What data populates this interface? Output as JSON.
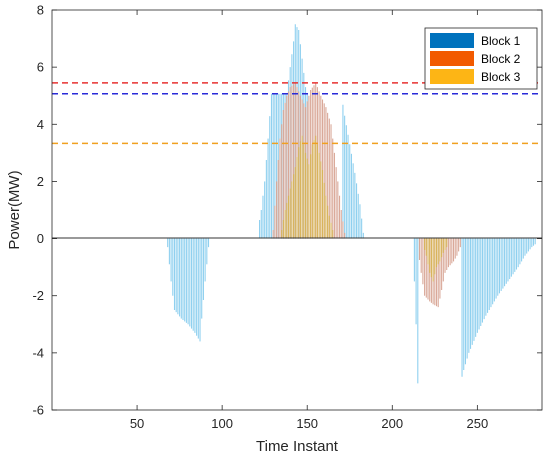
{
  "chart_data": {
    "type": "bar",
    "title": "",
    "xlabel": "Time Instant",
    "ylabel": "Power(MW)",
    "xlim": [
      0,
      288
    ],
    "ylim": [
      -6,
      8
    ],
    "xticks": [
      50,
      100,
      150,
      200,
      250
    ],
    "yticks": [
      -6,
      -4,
      -2,
      0,
      2,
      4,
      6,
      8
    ],
    "grid": false,
    "legend_position": "top-right",
    "series": [
      {
        "name": "Block 1",
        "color": "#0072BD",
        "bar_color": "#8fd0ef",
        "limit": 5.07,
        "limit_color": "#2a2ad8",
        "profile_points": [
          [
            68,
            -0.3
          ],
          [
            70,
            -1.5
          ],
          [
            72,
            -2.5
          ],
          [
            76,
            -2.8
          ],
          [
            80,
            -3.0
          ],
          [
            84,
            -3.3
          ],
          [
            87,
            -3.6
          ],
          [
            88,
            -2.8
          ],
          [
            90,
            -1.5
          ],
          [
            92,
            -0.3
          ],
          [
            121,
            0.3
          ],
          [
            123,
            1.0
          ],
          [
            125,
            2.0
          ],
          [
            127,
            3.5
          ],
          [
            129,
            5.07
          ],
          [
            138,
            5.07
          ],
          [
            140,
            6.0
          ],
          [
            142,
            6.9
          ],
          [
            143,
            7.5
          ],
          [
            145,
            7.3
          ],
          [
            147,
            6.3
          ],
          [
            149,
            5.3
          ],
          [
            150,
            5.07
          ],
          [
            170,
            5.07
          ],
          [
            172,
            4.3
          ],
          [
            175,
            3.3
          ],
          [
            178,
            2.3
          ],
          [
            181,
            1.2
          ],
          [
            183,
            0.2
          ],
          [
            212,
            -0.3
          ],
          [
            213,
            -1.5
          ],
          [
            214,
            -3.0
          ],
          [
            215,
            -5.07
          ],
          [
            240,
            -5.07
          ],
          [
            242,
            -4.6
          ],
          [
            245,
            -4.0
          ],
          [
            250,
            -3.3
          ],
          [
            255,
            -2.7
          ],
          [
            262,
            -2.0
          ],
          [
            268,
            -1.5
          ],
          [
            274,
            -1.0
          ],
          [
            278,
            -0.6
          ],
          [
            282,
            -0.3
          ],
          [
            284,
            -0.2
          ]
        ]
      },
      {
        "name": "Block 2",
        "color": "#F25A00",
        "bar_color": "#d9a898",
        "limit": 5.45,
        "limit_color": "#e83030",
        "profile_points": [
          [
            130,
            0.3
          ],
          [
            132,
            2.0
          ],
          [
            134,
            3.5
          ],
          [
            136,
            4.5
          ],
          [
            138,
            5.0
          ],
          [
            140,
            5.3
          ],
          [
            143,
            5.45
          ],
          [
            146,
            5.0
          ],
          [
            149,
            4.6
          ],
          [
            152,
            5.2
          ],
          [
            155,
            5.45
          ],
          [
            158,
            5.0
          ],
          [
            161,
            4.6
          ],
          [
            164,
            4.0
          ],
          [
            166,
            3.0
          ],
          [
            168,
            2.0
          ],
          [
            170,
            1.0
          ],
          [
            172,
            0.2
          ],
          [
            215,
            -0.3
          ],
          [
            217,
            -1.2
          ],
          [
            219,
            -2.0
          ],
          [
            222,
            -2.2
          ],
          [
            224,
            -2.3
          ],
          [
            227,
            -2.4
          ],
          [
            229,
            -1.8
          ],
          [
            231,
            -1.2
          ],
          [
            233,
            -1.0
          ],
          [
            236,
            -0.8
          ],
          [
            238,
            -0.6
          ],
          [
            240,
            -0.3
          ]
        ]
      },
      {
        "name": "Block 3",
        "color": "#FDB515",
        "bar_color": "#d8b45a",
        "limit": 3.33,
        "limit_color": "#f0a020",
        "profile_points": [
          [
            135,
            0.3
          ],
          [
            137,
            1.0
          ],
          [
            139,
            1.5
          ],
          [
            141,
            2.0
          ],
          [
            143,
            2.5
          ],
          [
            145,
            3.2
          ],
          [
            147,
            3.6
          ],
          [
            149,
            3.0
          ],
          [
            151,
            2.6
          ],
          [
            153,
            3.3
          ],
          [
            155,
            3.6
          ],
          [
            157,
            3.0
          ],
          [
            159,
            2.4
          ],
          [
            161,
            1.5
          ],
          [
            163,
            0.8
          ],
          [
            165,
            0.3
          ],
          [
            218,
            -0.2
          ],
          [
            220,
            -0.6
          ],
          [
            222,
            -1.2
          ],
          [
            224,
            -1.5
          ],
          [
            226,
            -1.0
          ],
          [
            228,
            -0.8
          ],
          [
            230,
            -0.5
          ],
          [
            232,
            -0.3
          ]
        ]
      }
    ]
  }
}
